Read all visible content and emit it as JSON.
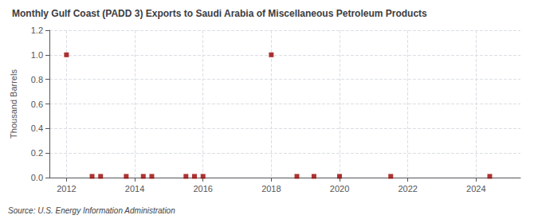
{
  "chart_data": {
    "type": "scatter",
    "title": "Monthly Gulf Coast (PADD 3) Exports to Saudi Arabia of Miscellaneous Petroleum Products",
    "ylabel": "Thousand Barrels",
    "annotation": "Source: U.S. Energy Information Administration",
    "x": [
      2012.0,
      2012.75,
      2013.0,
      2013.75,
      2014.25,
      2014.5,
      2015.5,
      2015.75,
      2016.0,
      2018.0,
      2018.75,
      2019.25,
      2020.0,
      2021.5,
      2024.4
    ],
    "values": [
      1.0,
      0.01,
      0.01,
      0.01,
      0.01,
      0.01,
      0.01,
      0.01,
      0.01,
      1.0,
      0.01,
      0.01,
      0.01,
      0.01,
      0.01
    ],
    "color": "#990000",
    "marker": "square",
    "xlim": [
      2011.5,
      2025.3
    ],
    "xticks": [
      2012,
      2014,
      2016,
      2018,
      2020,
      2022,
      2024
    ],
    "ylim": [
      0,
      1.2
    ],
    "yticks": [
      {
        "value": 0,
        "label": "0.0"
      },
      0.2,
      0.4,
      0.6,
      0.8,
      {
        "value": 1,
        "label": "1.0"
      },
      1.2
    ],
    "grid": true
  }
}
